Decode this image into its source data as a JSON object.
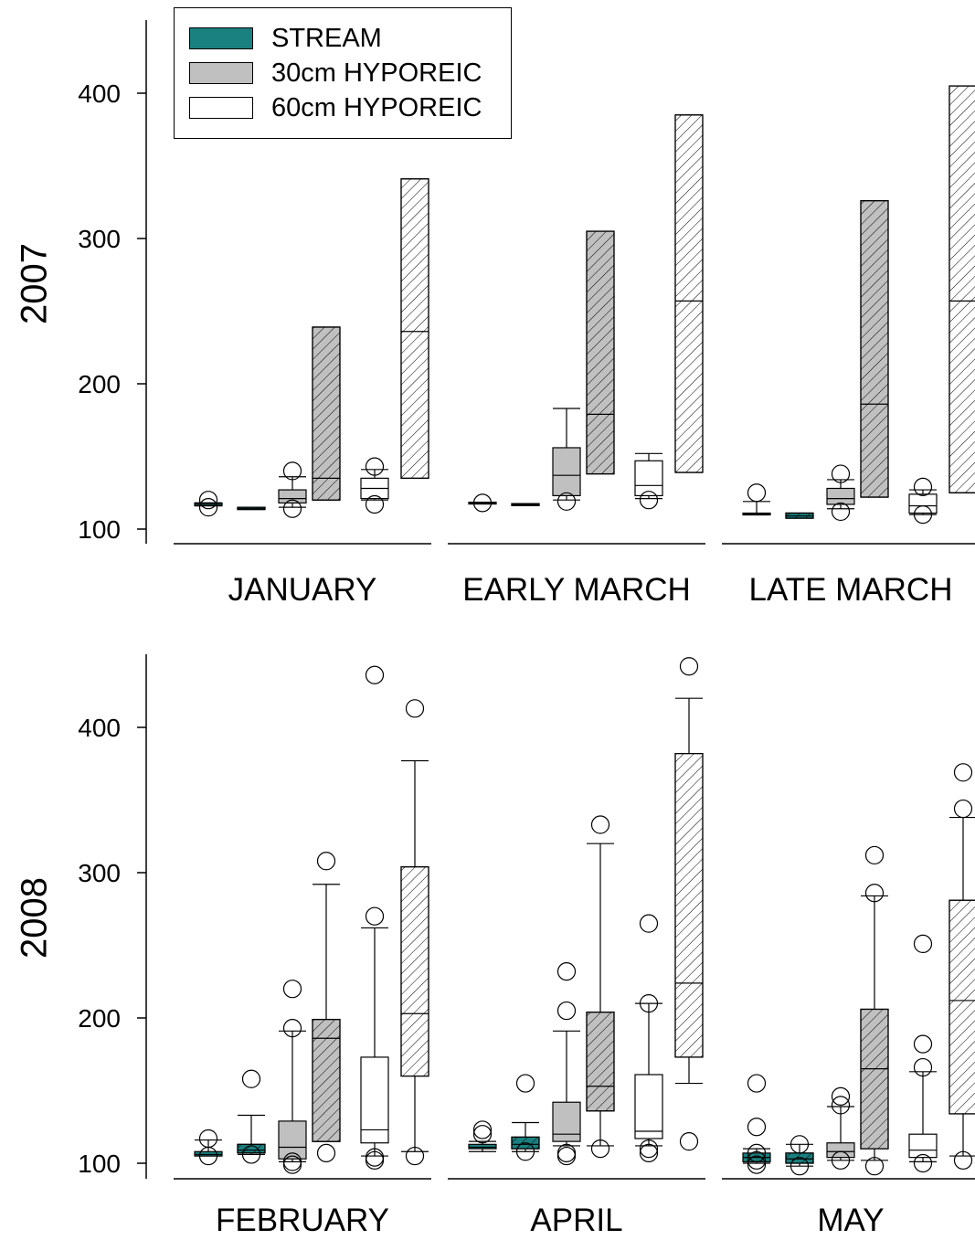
{
  "legend": {
    "items": [
      {
        "label": "STREAM",
        "color": "#1a8080"
      },
      {
        "label": "30cm HYPOREIC",
        "color": "#c0c0c0"
      },
      {
        "label": "60cm HYPOREIC",
        "color": "#ffffff"
      }
    ]
  },
  "chart_data": [
    {
      "type": "box",
      "row_label": "2007",
      "y_ticks": [
        "100",
        "200",
        "300",
        "400"
      ],
      "ylim": [
        90,
        450
      ],
      "panels": [
        {
          "label": "JANUARY",
          "boxes": [
            {
              "fill": "stream",
              "hatch": false,
              "q1": 116,
              "median": 117,
              "q3": 118,
              "whisker_low": 116,
              "whisker_high": 118,
              "outliers": [
                115,
                120
              ]
            },
            {
              "fill": "stream",
              "hatch": true,
              "q1": 113.5,
              "median": 114,
              "q3": 115,
              "whisker_low": 113.5,
              "whisker_high": 115,
              "outliers": []
            },
            {
              "fill": "30cm",
              "hatch": false,
              "q1": 118,
              "median": 121,
              "q3": 127,
              "whisker_low": 115,
              "whisker_high": 136,
              "outliers": [
                114,
                140
              ]
            },
            {
              "fill": "30cm",
              "hatch": true,
              "q1": 120,
              "median": 135,
              "q3": 239,
              "whisker_low": 120,
              "whisker_high": 239,
              "outliers": []
            },
            {
              "fill": "60cm",
              "hatch": false,
              "q1": 121,
              "median": 128,
              "q3": 135,
              "whisker_low": 120,
              "whisker_high": 141,
              "outliers": [
                117,
                143
              ]
            },
            {
              "fill": "60cm",
              "hatch": true,
              "q1": 135,
              "median": 236,
              "q3": 341,
              "whisker_low": 135,
              "whisker_high": 341,
              "outliers": []
            }
          ]
        },
        {
          "label": "EARLY MARCH",
          "boxes": [
            {
              "fill": "stream",
              "hatch": false,
              "q1": 117.5,
              "median": 118,
              "q3": 118.5,
              "whisker_low": 117.5,
              "whisker_high": 118.5,
              "outliers": [
                118
              ]
            },
            {
              "fill": "stream",
              "hatch": true,
              "q1": 116.5,
              "median": 117,
              "q3": 117.5,
              "whisker_low": 116.5,
              "whisker_high": 117.5,
              "outliers": []
            },
            {
              "fill": "30cm",
              "hatch": false,
              "q1": 123,
              "median": 137,
              "q3": 156,
              "whisker_low": 120,
              "whisker_high": 183,
              "outliers": [
                119
              ]
            },
            {
              "fill": "30cm",
              "hatch": true,
              "q1": 138,
              "median": 179,
              "q3": 305,
              "whisker_low": 138,
              "whisker_high": 305,
              "outliers": []
            },
            {
              "fill": "60cm",
              "hatch": false,
              "q1": 123,
              "median": 130,
              "q3": 147,
              "whisker_low": 121,
              "whisker_high": 152,
              "outliers": [
                120
              ]
            },
            {
              "fill": "60cm",
              "hatch": true,
              "q1": 139,
              "median": 257,
              "q3": 385,
              "whisker_low": 139,
              "whisker_high": 385,
              "outliers": []
            }
          ]
        },
        {
          "label": "LATE MARCH",
          "boxes": [
            {
              "fill": "stream",
              "hatch": false,
              "q1": 110,
              "median": 110.5,
              "q3": 111,
              "whisker_low": 110,
              "whisker_high": 119,
              "outliers": [
                125
              ]
            },
            {
              "fill": "stream",
              "hatch": true,
              "q1": 107.5,
              "median": 109,
              "q3": 111,
              "whisker_low": 107.5,
              "whisker_high": 111,
              "outliers": []
            },
            {
              "fill": "30cm",
              "hatch": false,
              "q1": 117,
              "median": 121,
              "q3": 128,
              "whisker_low": 114,
              "whisker_high": 134,
              "outliers": [
                112,
                138
              ]
            },
            {
              "fill": "30cm",
              "hatch": true,
              "q1": 122,
              "median": 186,
              "q3": 326,
              "whisker_low": 122,
              "whisker_high": 326,
              "outliers": []
            },
            {
              "fill": "60cm",
              "hatch": false,
              "q1": 111,
              "median": 116,
              "q3": 124,
              "whisker_low": 110,
              "whisker_high": 127,
              "outliers": [
                110,
                129
              ]
            },
            {
              "fill": "60cm",
              "hatch": true,
              "q1": 125,
              "median": 257,
              "q3": 405,
              "whisker_low": 125,
              "whisker_high": 405,
              "outliers": []
            }
          ]
        }
      ]
    },
    {
      "type": "box",
      "row_label": "2008",
      "y_ticks": [
        "100",
        "200",
        "300",
        "400"
      ],
      "ylim": [
        90,
        450
      ],
      "panels": [
        {
          "label": "FEBRUARY",
          "boxes": [
            {
              "fill": "stream",
              "hatch": false,
              "q1": 105,
              "median": 106,
              "q3": 108,
              "whisker_low": 105,
              "whisker_high": 116,
              "outliers": [
                105,
                117
              ]
            },
            {
              "fill": "stream",
              "hatch": true,
              "q1": 107,
              "median": 109,
              "q3": 113,
              "whisker_low": 106,
              "whisker_high": 133,
              "outliers": [
                106,
                158
              ]
            },
            {
              "fill": "30cm",
              "hatch": false,
              "q1": 103,
              "median": 111,
              "q3": 129,
              "whisker_low": 101,
              "whisker_high": 191,
              "outliers": [
                99,
                101,
                193,
                220
              ]
            },
            {
              "fill": "30cm",
              "hatch": true,
              "q1": 115,
              "median": 186,
              "q3": 199,
              "whisker_low": 115,
              "whisker_high": 292,
              "outliers": [
                107,
                308
              ]
            },
            {
              "fill": "60cm",
              "hatch": false,
              "q1": 114,
              "median": 123,
              "q3": 173,
              "whisker_low": 105,
              "whisker_high": 262,
              "outliers": [
                102,
                104,
                270,
                436
              ]
            },
            {
              "fill": "60cm",
              "hatch": true,
              "q1": 160,
              "median": 203,
              "q3": 304,
              "whisker_low": 108,
              "whisker_high": 377,
              "outliers": [
                105,
                413
              ]
            }
          ]
        },
        {
          "label": "APRIL",
          "boxes": [
            {
              "fill": "stream",
              "hatch": false,
              "q1": 110,
              "median": 111,
              "q3": 113,
              "whisker_low": 108,
              "whisker_high": 115,
              "outliers": [
                120,
                123
              ]
            },
            {
              "fill": "stream",
              "hatch": true,
              "q1": 110,
              "median": 113,
              "q3": 118,
              "whisker_low": 108,
              "whisker_high": 128,
              "outliers": [
                108,
                155
              ]
            },
            {
              "fill": "30cm",
              "hatch": false,
              "q1": 115,
              "median": 120,
              "q3": 142,
              "whisker_low": 112,
              "whisker_high": 191,
              "outliers": [
                105,
                107,
                205,
                232
              ]
            },
            {
              "fill": "30cm",
              "hatch": true,
              "q1": 136,
              "median": 153,
              "q3": 204,
              "whisker_low": 112,
              "whisker_high": 320,
              "outliers": [
                110,
                333
              ]
            },
            {
              "fill": "60cm",
              "hatch": false,
              "q1": 117,
              "median": 122,
              "q3": 161,
              "whisker_low": 112,
              "whisker_high": 210,
              "outliers": [
                107,
                110,
                210,
                265
              ]
            },
            {
              "fill": "60cm",
              "hatch": true,
              "q1": 173,
              "median": 224,
              "q3": 382,
              "whisker_low": 155,
              "whisker_high": 420,
              "outliers": [
                115,
                442
              ]
            }
          ]
        },
        {
          "label": "MAY",
          "boxes": [
            {
              "fill": "stream",
              "hatch": false,
              "q1": 101,
              "median": 104,
              "q3": 107,
              "whisker_low": 100,
              "whisker_high": 110,
              "outliers": [
                99,
                102,
                107,
                125,
                155
              ]
            },
            {
              "fill": "stream",
              "hatch": true,
              "q1": 100,
              "median": 103,
              "q3": 107,
              "whisker_low": 98,
              "whisker_high": 113,
              "outliers": [
                98,
                113
              ]
            },
            {
              "fill": "30cm",
              "hatch": false,
              "q1": 104,
              "median": 108,
              "q3": 114,
              "whisker_low": 102,
              "whisker_high": 139,
              "outliers": [
                102,
                140,
                146
              ]
            },
            {
              "fill": "30cm",
              "hatch": true,
              "q1": 110,
              "median": 165,
              "q3": 206,
              "whisker_low": 102,
              "whisker_high": 284,
              "outliers": [
                98,
                286,
                312
              ]
            },
            {
              "fill": "60cm",
              "hatch": false,
              "q1": 104,
              "median": 109,
              "q3": 120,
              "whisker_low": 101,
              "whisker_high": 163,
              "outliers": [
                100,
                166,
                182,
                251
              ]
            },
            {
              "fill": "60cm",
              "hatch": true,
              "q1": 134,
              "median": 212,
              "q3": 281,
              "whisker_low": 105,
              "whisker_high": 338,
              "outliers": [
                102,
                344,
                369
              ]
            }
          ]
        }
      ]
    }
  ]
}
